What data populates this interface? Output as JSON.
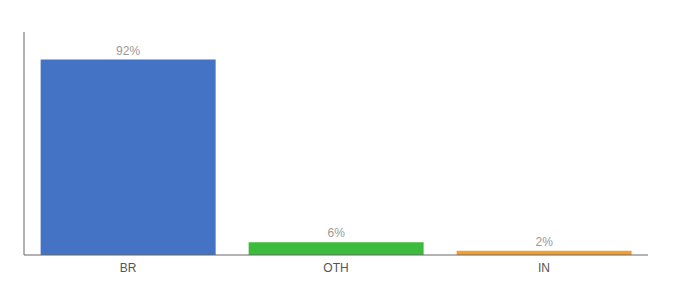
{
  "chart_data": {
    "type": "bar",
    "categories": [
      "BR",
      "OTH",
      "IN"
    ],
    "values": [
      92,
      6,
      2
    ],
    "value_labels": [
      "92%",
      "6%",
      "2%"
    ],
    "colors": [
      "#4472c4",
      "#3dbb3d",
      "#f0a030"
    ],
    "ylim": [
      0,
      105
    ],
    "data_labels": true,
    "tick_labels": "x"
  }
}
